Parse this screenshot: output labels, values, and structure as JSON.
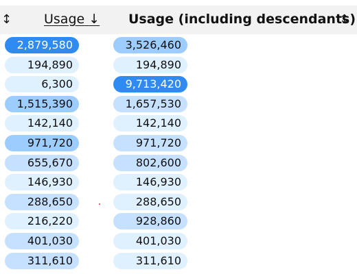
{
  "header": {
    "sort_icon": "↕",
    "usage_label": "Usage",
    "usage_sort_icon": "↓",
    "descendants_label": "Usage (including descendants)",
    "descendants_sort_icon": "↕"
  },
  "rows": [
    {
      "usage": "2,879,580",
      "usage_level": "max",
      "descendants": "3,526,460",
      "descendants_level": "high"
    },
    {
      "usage": "194,890",
      "usage_level": "low",
      "descendants": "194,890",
      "descendants_level": "low"
    },
    {
      "usage": "6,300",
      "usage_level": "low",
      "descendants": "9,713,420",
      "descendants_level": "max"
    },
    {
      "usage": "1,515,390",
      "usage_level": "high",
      "descendants": "1,657,530",
      "descendants_level": "mid"
    },
    {
      "usage": "142,140",
      "usage_level": "low",
      "descendants": "142,140",
      "descendants_level": "low"
    },
    {
      "usage": "971,720",
      "usage_level": "high",
      "descendants": "971,720",
      "descendants_level": "mid"
    },
    {
      "usage": "655,670",
      "usage_level": "mid",
      "descendants": "802,600",
      "descendants_level": "mid"
    },
    {
      "usage": "146,930",
      "usage_level": "low",
      "descendants": "146,930",
      "descendants_level": "low"
    },
    {
      "usage": "288,650",
      "usage_level": "mid",
      "descendants": "288,650",
      "descendants_level": "low"
    },
    {
      "usage": "216,220",
      "usage_level": "low",
      "descendants": "928,860",
      "descendants_level": "mid"
    },
    {
      "usage": "401,030",
      "usage_level": "mid",
      "descendants": "401,030",
      "descendants_level": "low"
    },
    {
      "usage": "311,610",
      "usage_level": "mid",
      "descendants": "311,610",
      "descendants_level": "low"
    }
  ],
  "colors": {
    "max": "#2f8bf2",
    "high": "#9dccff",
    "mid": "#c5e1ff",
    "low": "#dff0ff",
    "header_bg": "#f2f2f2"
  }
}
